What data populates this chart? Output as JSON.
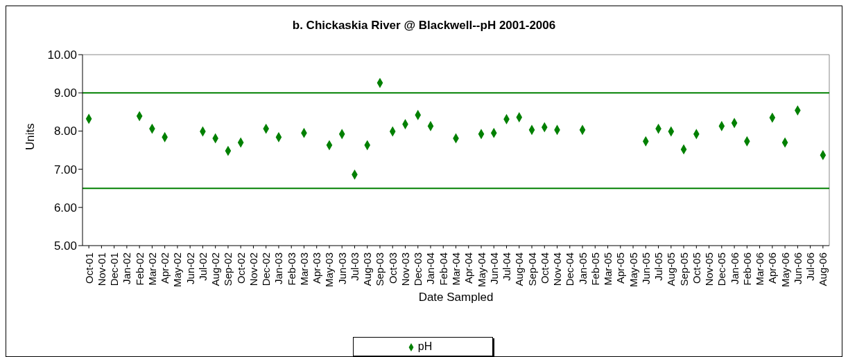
{
  "chart_data": {
    "type": "scatter",
    "title": "b.  Chickaskia River @ Blackwell--pH 2001-2006",
    "xlabel": "Date Sampled",
    "ylabel": "Units",
    "categories": [
      "Oct-01",
      "Nov-01",
      "Dec-01",
      "Jan-02",
      "Feb-02",
      "Mar-02",
      "Apr-02",
      "May-02",
      "Jun-02",
      "Jul-02",
      "Aug-02",
      "Sep-02",
      "Oct-02",
      "Nov-02",
      "Dec-02",
      "Jan-03",
      "Feb-03",
      "Mar-03",
      "Apr-03",
      "May-03",
      "Jun-03",
      "Jul-03",
      "Aug-03",
      "Sep-03",
      "Oct-03",
      "Nov-03",
      "Dec-03",
      "Jan-04",
      "Feb-04",
      "Mar-04",
      "Apr-04",
      "May-04",
      "Jun-04",
      "Jul-04",
      "Aug-04",
      "Sep-04",
      "Oct-04",
      "Nov-04",
      "Dec-04",
      "Jan-05",
      "Feb-05",
      "Mar-05",
      "Apr-05",
      "May-05",
      "Jun-05",
      "Jul-05",
      "Aug-05",
      "Sep-05",
      "Oct-05",
      "Nov-05",
      "Dec-05",
      "Jan-06",
      "Feb-06",
      "Mar-06",
      "Apr-06",
      "May-06",
      "Jun-06",
      "Jul-06",
      "Aug-06"
    ],
    "series": [
      {
        "name": "pH",
        "color": "#008000",
        "values": [
          8.32,
          null,
          null,
          null,
          8.39,
          8.06,
          7.84,
          null,
          null,
          7.99,
          7.81,
          7.48,
          7.7,
          null,
          8.06,
          7.84,
          null,
          7.95,
          null,
          7.63,
          7.92,
          6.86,
          7.63,
          9.26,
          7.99,
          8.18,
          8.42,
          8.13,
          null,
          7.81,
          null,
          7.92,
          7.95,
          8.31,
          8.36,
          8.03,
          8.1,
          8.03,
          null,
          8.03,
          null,
          null,
          null,
          null,
          7.73,
          8.06,
          7.99,
          7.52,
          7.92,
          null,
          8.13,
          8.21,
          7.73,
          null,
          8.35,
          7.7,
          8.54,
          null,
          7.37
        ]
      }
    ],
    "ylim": [
      5,
      10
    ],
    "yticks": [
      {
        "value": 5,
        "label": "5.00"
      },
      {
        "value": 6,
        "label": "6.00"
      },
      {
        "value": 7,
        "label": "7.00"
      },
      {
        "value": 8,
        "label": "8.00"
      },
      {
        "value": 9,
        "label": "9.00"
      },
      {
        "value": 10,
        "label": "10.00"
      }
    ],
    "ref_lines": [
      {
        "axis": "y",
        "value": 9,
        "color": "#008000"
      },
      {
        "axis": "y",
        "value": 6.5,
        "color": "#008000"
      }
    ],
    "grid": false,
    "legend": "bottom",
    "marker": "diamond"
  }
}
